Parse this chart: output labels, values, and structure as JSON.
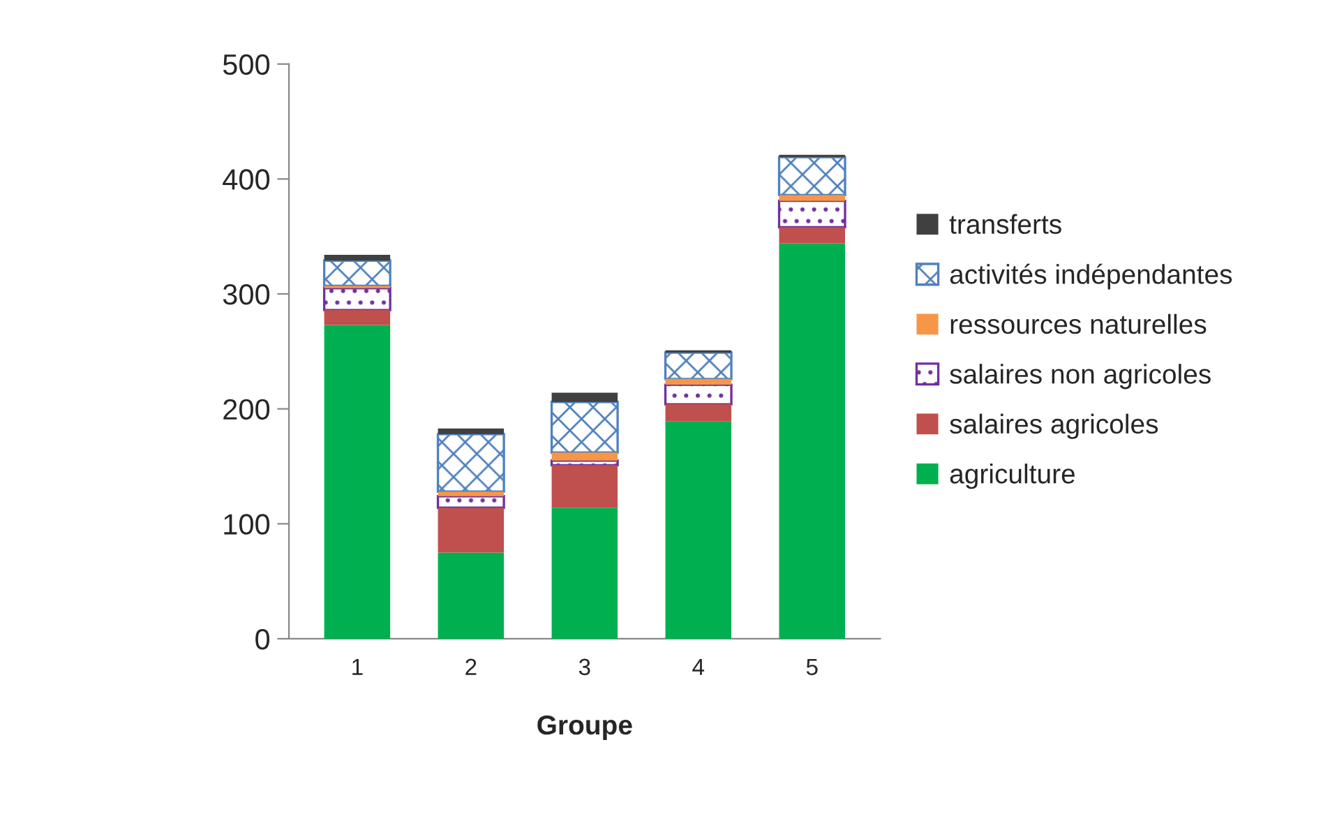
{
  "chart_data": {
    "type": "bar",
    "stacked": true,
    "xlabel": "Groupe",
    "categories": [
      "1",
      "2",
      "3",
      "4",
      "5"
    ],
    "series": [
      {
        "name": "agriculture",
        "color": "#00b050",
        "values": [
          273,
          75,
          114,
          189,
          344
        ]
      },
      {
        "name": "salaires agricoles",
        "color": "#c0504d",
        "values": [
          13,
          39,
          37,
          15,
          14
        ]
      },
      {
        "name": "salaires non agricoles",
        "color": "#7030a0",
        "values": [
          19,
          10,
          4,
          17,
          23
        ]
      },
      {
        "name": "ressources naturelles",
        "color": "#f79646",
        "values": [
          2,
          4,
          7,
          5,
          5
        ]
      },
      {
        "name": "activités indépendantes",
        "color": "#4f81bd",
        "values": [
          22,
          50,
          44,
          23,
          33
        ]
      },
      {
        "name": "transferts",
        "color": "#404040",
        "values": [
          5,
          5,
          8,
          2,
          2
        ]
      }
    ],
    "ylim": [
      0,
      500
    ],
    "yticks": [
      0,
      100,
      200,
      300,
      400,
      500
    ],
    "grid": false,
    "legend": "right"
  }
}
